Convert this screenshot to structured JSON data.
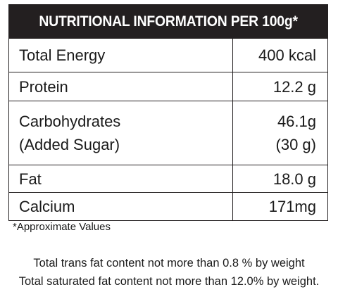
{
  "label": {
    "title": "NUTRITIONAL INFORMATION PER 100g*",
    "rows": [
      {
        "name": "Total Energy",
        "value": "400 kcal"
      },
      {
        "name": "Protein",
        "value": "12.2 g"
      },
      {
        "name": "Carbohydrates",
        "value": "46.1g",
        "sub_name": "(Added Sugar)",
        "sub_value": "(30 g)"
      },
      {
        "name": "Fat",
        "value": "18.0 g"
      },
      {
        "name": "Calcium",
        "value": "171mg"
      }
    ],
    "footnote": "*Approximate Values",
    "notes": [
      "Total trans fat content not more than 0.8 % by weight",
      "Total saturated fat content not more than 12.0% by weight."
    ]
  },
  "colors": {
    "header_background": "#231f20",
    "header_text": "#ffffff",
    "border": "#231f20"
  }
}
